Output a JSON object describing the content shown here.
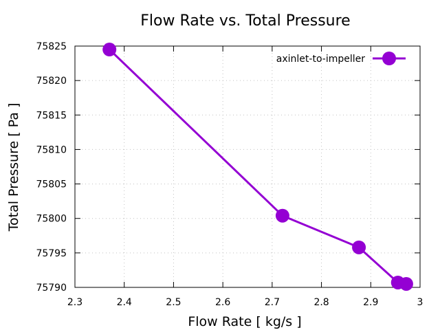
{
  "chart_data": {
    "type": "line",
    "title": "Flow Rate vs. Total Pressure",
    "xlabel": "Flow Rate [ kg/s ]",
    "ylabel": "Total Pressure [ Pa ]",
    "xlim": [
      2.3,
      3.0
    ],
    "ylim": [
      75790,
      75825
    ],
    "xticks": [
      "2.3",
      "2.4",
      "2.5",
      "2.6",
      "2.7",
      "2.8",
      "2.9",
      "3"
    ],
    "yticks": [
      "75790",
      "75795",
      "75800",
      "75805",
      "75810",
      "75815",
      "75820",
      "75825"
    ],
    "grid": true,
    "legend_position": "top-right",
    "series": [
      {
        "name": "axinlet-to-impeller",
        "color": "#9400d3",
        "marker": "filled-circle",
        "x": [
          2.37,
          2.721,
          2.876,
          2.955,
          2.972
        ],
        "y": [
          75824.5,
          75800.4,
          75795.8,
          75790.7,
          75790.5
        ]
      }
    ]
  }
}
